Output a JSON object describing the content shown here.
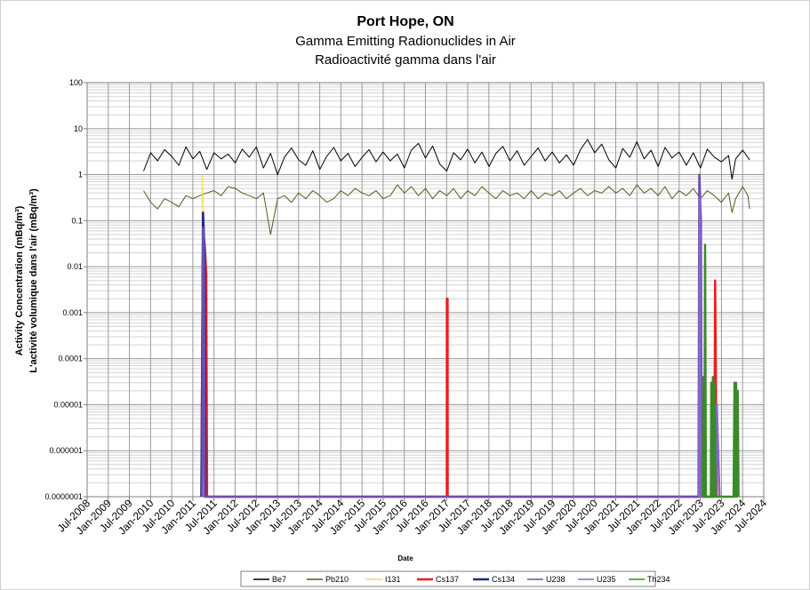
{
  "chart_data": {
    "type": "line",
    "title": "Port Hope, ON",
    "subtitle_lines": [
      "Gamma Emitting Radionuclides in Air",
      "Radioactivité gamma dans l'air"
    ],
    "ylabel_lines": [
      "Activity Concentration  (mBq/m³)",
      "L'activité volumique dans l'air (mBq/m³)"
    ],
    "xlabel": "Date",
    "y_scale": "log",
    "ylim": [
      1e-07,
      100
    ],
    "y_ticks": [
      100,
      10,
      1,
      0.1,
      0.01,
      0.001,
      0.0001,
      1e-05,
      1e-06,
      1e-07
    ],
    "y_tick_labels": [
      "100",
      "10",
      "1",
      "0.1",
      "0.01",
      "0.001",
      "0.0001",
      "0.00001",
      "0.000001",
      "0.0000001"
    ],
    "xlim": [
      "2008-07-01",
      "2024-07-01"
    ],
    "x_tick_labels": [
      "Jul-2008",
      "Jan-2009",
      "Jul-2009",
      "Jan-2010",
      "Jul-2010",
      "Jan-2011",
      "Jul-2011",
      "Jan-2012",
      "Jul-2012",
      "Jan-2013",
      "Jul-2013",
      "Jan-2014",
      "Jul-2014",
      "Jan-2015",
      "Jul-2015",
      "Jan-2016",
      "Jul-2016",
      "Jan-2017",
      "Jul-2017",
      "Jan-2018",
      "Jul-2018",
      "Jan-2019",
      "Jul-2019",
      "Jan-2020",
      "Jul-2020",
      "Jan-2021",
      "Jul-2021",
      "Jan-2022",
      "Jul-2022",
      "Jan-2023",
      "Jul-2023",
      "Jan-2024",
      "Jul-2024"
    ],
    "grid": true,
    "legend_position": "bottom",
    "series": [
      {
        "name": "Be7",
        "color": "#000000",
        "points": [
          [
            "2009-11-01",
            1.2
          ],
          [
            "2010-01-01",
            3.0
          ],
          [
            "2010-03-01",
            2.0
          ],
          [
            "2010-05-01",
            3.5
          ],
          [
            "2010-07-01",
            2.5
          ],
          [
            "2010-09-01",
            1.6
          ],
          [
            "2010-11-01",
            4.0
          ],
          [
            "2011-01-01",
            2.2
          ],
          [
            "2011-03-01",
            3.2
          ],
          [
            "2011-05-01",
            1.3
          ],
          [
            "2011-07-01",
            3.0
          ],
          [
            "2011-09-01",
            2.2
          ],
          [
            "2011-11-01",
            2.8
          ],
          [
            "2012-01-01",
            1.8
          ],
          [
            "2012-03-01",
            3.6
          ],
          [
            "2012-05-01",
            2.4
          ],
          [
            "2012-07-01",
            4.0
          ],
          [
            "2012-09-01",
            1.4
          ],
          [
            "2012-11-01",
            2.9
          ],
          [
            "2013-01-01",
            1.0
          ],
          [
            "2013-03-01",
            2.4
          ],
          [
            "2013-05-01",
            3.8
          ],
          [
            "2013-07-01",
            2.1
          ],
          [
            "2013-09-01",
            1.6
          ],
          [
            "2013-11-01",
            3.3
          ],
          [
            "2014-01-01",
            1.3
          ],
          [
            "2014-03-01",
            2.5
          ],
          [
            "2014-05-01",
            3.9
          ],
          [
            "2014-07-01",
            2.0
          ],
          [
            "2014-09-01",
            2.9
          ],
          [
            "2014-11-01",
            1.5
          ],
          [
            "2015-01-01",
            2.4
          ],
          [
            "2015-03-01",
            3.5
          ],
          [
            "2015-05-01",
            1.9
          ],
          [
            "2015-07-01",
            3.1
          ],
          [
            "2015-09-01",
            2.0
          ],
          [
            "2015-11-01",
            2.8
          ],
          [
            "2016-01-01",
            1.4
          ],
          [
            "2016-03-01",
            3.4
          ],
          [
            "2016-05-01",
            4.8
          ],
          [
            "2016-07-01",
            2.3
          ],
          [
            "2016-09-01",
            4.2
          ],
          [
            "2016-11-01",
            1.7
          ],
          [
            "2017-01-01",
            1.2
          ],
          [
            "2017-03-01",
            3.0
          ],
          [
            "2017-05-01",
            2.1
          ],
          [
            "2017-07-01",
            3.6
          ],
          [
            "2017-09-01",
            1.8
          ],
          [
            "2017-11-01",
            3.1
          ],
          [
            "2018-01-01",
            1.5
          ],
          [
            "2018-03-01",
            2.9
          ],
          [
            "2018-05-01",
            4.1
          ],
          [
            "2018-07-01",
            2.0
          ],
          [
            "2018-09-01",
            3.3
          ],
          [
            "2018-11-01",
            1.6
          ],
          [
            "2019-01-01",
            2.5
          ],
          [
            "2019-03-01",
            3.8
          ],
          [
            "2019-05-01",
            2.0
          ],
          [
            "2019-07-01",
            3.1
          ],
          [
            "2019-09-01",
            1.8
          ],
          [
            "2019-11-01",
            2.7
          ],
          [
            "2020-01-01",
            1.6
          ],
          [
            "2020-03-01",
            3.5
          ],
          [
            "2020-05-01",
            5.8
          ],
          [
            "2020-07-01",
            3.0
          ],
          [
            "2020-09-01",
            4.6
          ],
          [
            "2020-11-01",
            2.1
          ],
          [
            "2021-01-01",
            1.4
          ],
          [
            "2021-03-01",
            3.7
          ],
          [
            "2021-05-01",
            2.4
          ],
          [
            "2021-07-01",
            5.2
          ],
          [
            "2021-09-01",
            2.2
          ],
          [
            "2021-11-01",
            3.4
          ],
          [
            "2022-01-01",
            1.5
          ],
          [
            "2022-03-01",
            3.9
          ],
          [
            "2022-05-01",
            2.3
          ],
          [
            "2022-07-01",
            3.1
          ],
          [
            "2022-09-01",
            1.6
          ],
          [
            "2022-11-01",
            3.0
          ],
          [
            "2023-01-01",
            1.4
          ],
          [
            "2023-03-01",
            3.6
          ],
          [
            "2023-05-01",
            2.4
          ],
          [
            "2023-07-01",
            1.9
          ],
          [
            "2023-09-01",
            2.6
          ],
          [
            "2023-10-01",
            0.8
          ],
          [
            "2023-11-01",
            2.2
          ],
          [
            "2024-01-01",
            3.4
          ],
          [
            "2024-03-01",
            2.1
          ]
        ]
      },
      {
        "name": "Pb210",
        "color": "#5a5a1e",
        "points": [
          [
            "2009-11-01",
            0.45
          ],
          [
            "2010-01-01",
            0.25
          ],
          [
            "2010-03-01",
            0.18
          ],
          [
            "2010-05-01",
            0.3
          ],
          [
            "2010-07-01",
            0.25
          ],
          [
            "2010-09-01",
            0.2
          ],
          [
            "2010-11-01",
            0.35
          ],
          [
            "2011-01-01",
            0.3
          ],
          [
            "2011-03-01",
            0.35
          ],
          [
            "2011-05-01",
            0.4
          ],
          [
            "2011-07-01",
            0.45
          ],
          [
            "2011-09-01",
            0.35
          ],
          [
            "2011-11-01",
            0.55
          ],
          [
            "2012-01-01",
            0.5
          ],
          [
            "2012-03-01",
            0.4
          ],
          [
            "2012-05-01",
            0.35
          ],
          [
            "2012-07-01",
            0.3
          ],
          [
            "2012-09-01",
            0.4
          ],
          [
            "2012-11-01",
            0.05
          ],
          [
            "2013-01-01",
            0.3
          ],
          [
            "2013-03-01",
            0.35
          ],
          [
            "2013-05-01",
            0.25
          ],
          [
            "2013-07-01",
            0.4
          ],
          [
            "2013-09-01",
            0.3
          ],
          [
            "2013-11-01",
            0.45
          ],
          [
            "2014-01-01",
            0.35
          ],
          [
            "2014-03-01",
            0.25
          ],
          [
            "2014-05-01",
            0.3
          ],
          [
            "2014-07-01",
            0.45
          ],
          [
            "2014-09-01",
            0.35
          ],
          [
            "2014-11-01",
            0.5
          ],
          [
            "2015-01-01",
            0.4
          ],
          [
            "2015-03-01",
            0.35
          ],
          [
            "2015-05-01",
            0.45
          ],
          [
            "2015-07-01",
            0.3
          ],
          [
            "2015-09-01",
            0.35
          ],
          [
            "2015-11-01",
            0.6
          ],
          [
            "2016-01-01",
            0.4
          ],
          [
            "2016-03-01",
            0.55
          ],
          [
            "2016-05-01",
            0.35
          ],
          [
            "2016-07-01",
            0.5
          ],
          [
            "2016-09-01",
            0.3
          ],
          [
            "2016-11-01",
            0.45
          ],
          [
            "2017-01-01",
            0.35
          ],
          [
            "2017-03-01",
            0.5
          ],
          [
            "2017-05-01",
            0.3
          ],
          [
            "2017-07-01",
            0.45
          ],
          [
            "2017-09-01",
            0.35
          ],
          [
            "2017-11-01",
            0.55
          ],
          [
            "2018-01-01",
            0.4
          ],
          [
            "2018-03-01",
            0.3
          ],
          [
            "2018-05-01",
            0.45
          ],
          [
            "2018-07-01",
            0.35
          ],
          [
            "2018-09-01",
            0.4
          ],
          [
            "2018-11-01",
            0.3
          ],
          [
            "2019-01-01",
            0.45
          ],
          [
            "2019-03-01",
            0.3
          ],
          [
            "2019-05-01",
            0.4
          ],
          [
            "2019-07-01",
            0.35
          ],
          [
            "2019-09-01",
            0.45
          ],
          [
            "2019-11-01",
            0.3
          ],
          [
            "2020-01-01",
            0.4
          ],
          [
            "2020-03-01",
            0.5
          ],
          [
            "2020-05-01",
            0.35
          ],
          [
            "2020-07-01",
            0.45
          ],
          [
            "2020-09-01",
            0.4
          ],
          [
            "2020-11-01",
            0.55
          ],
          [
            "2021-01-01",
            0.4
          ],
          [
            "2021-03-01",
            0.5
          ],
          [
            "2021-05-01",
            0.35
          ],
          [
            "2021-07-01",
            0.6
          ],
          [
            "2021-09-01",
            0.4
          ],
          [
            "2021-11-01",
            0.5
          ],
          [
            "2022-01-01",
            0.35
          ],
          [
            "2022-03-01",
            0.55
          ],
          [
            "2022-05-01",
            0.3
          ],
          [
            "2022-07-01",
            0.45
          ],
          [
            "2022-09-01",
            0.35
          ],
          [
            "2022-11-01",
            0.5
          ],
          [
            "2023-01-01",
            0.3
          ],
          [
            "2023-03-01",
            0.45
          ],
          [
            "2023-05-01",
            0.35
          ],
          [
            "2023-07-01",
            0.25
          ],
          [
            "2023-09-01",
            0.4
          ],
          [
            "2023-10-01",
            0.15
          ],
          [
            "2023-11-01",
            0.3
          ],
          [
            "2024-01-01",
            0.55
          ],
          [
            "2024-02-15",
            0.35
          ],
          [
            "2024-03-01",
            0.18
          ]
        ]
      },
      {
        "name": "I131",
        "color": "#f2dc5d",
        "points": [
          [
            "2011-03-15",
            1e-07
          ],
          [
            "2011-03-22",
            1.0
          ],
          [
            "2011-03-29",
            0.3
          ],
          [
            "2011-04-05",
            0.15
          ],
          [
            "2011-04-12",
            0.02
          ],
          [
            "2011-04-19",
            1e-07
          ]
        ]
      },
      {
        "name": "Cs137",
        "color": "#e8201c",
        "points": [
          [
            "2011-03-15",
            1e-07
          ],
          [
            "2011-03-29",
            0.06
          ],
          [
            "2011-04-12",
            0.03
          ],
          [
            "2011-04-26",
            0.007
          ],
          [
            "2011-05-03",
            1e-07
          ],
          [
            "2017-01-01",
            1e-07
          ],
          [
            "2017-01-02",
            0.002
          ],
          [
            "2017-01-08",
            0.002
          ],
          [
            "2017-01-09",
            1e-07
          ],
          [
            "2023-05-01",
            1e-07
          ],
          [
            "2023-05-08",
            0.005
          ],
          [
            "2023-05-15",
            3e-05
          ],
          [
            "2023-05-22",
            1e-07
          ]
        ]
      },
      {
        "name": "Cs134",
        "color": "#1f2a8c",
        "points": [
          [
            "2011-03-15",
            1e-07
          ],
          [
            "2011-03-29",
            0.15
          ],
          [
            "2011-04-05",
            0.05
          ],
          [
            "2011-04-12",
            0.02
          ],
          [
            "2011-04-19",
            1e-07
          ]
        ]
      },
      {
        "name": "U238",
        "color": "#6a4fb0",
        "points": [
          [
            "2011-03-22",
            1e-07
          ],
          [
            "2011-03-29",
            0.07
          ],
          [
            "2011-04-05",
            0.04
          ],
          [
            "2011-04-12",
            1e-07
          ],
          [
            "2022-12-15",
            1e-07
          ],
          [
            "2022-12-22",
            1.0
          ],
          [
            "2023-01-05",
            0.1
          ],
          [
            "2023-01-12",
            1e-07
          ]
        ]
      },
      {
        "name": "U235",
        "color": "#8866cc",
        "points": [
          [
            "2022-12-20",
            1e-07
          ],
          [
            "2022-12-27",
            0.3
          ],
          [
            "2023-01-03",
            1e-07
          ],
          [
            "2023-05-15",
            1e-07
          ],
          [
            "2023-05-22",
            1e-05
          ],
          [
            "2023-06-15",
            1e-07
          ]
        ]
      },
      {
        "name": "Th234",
        "color": "#3a8a2a",
        "points": [
          [
            "2023-01-20",
            1e-07
          ],
          [
            "2023-01-27",
            4e-05
          ],
          [
            "2023-02-03",
            1e-07
          ],
          [
            "2023-02-10",
            0.03
          ],
          [
            "2023-02-17",
            1e-07
          ],
          [
            "2023-04-01",
            1e-07
          ],
          [
            "2023-04-05",
            3e-05
          ],
          [
            "2023-04-12",
            1e-07
          ],
          [
            "2023-04-19",
            4e-05
          ],
          [
            "2023-04-26",
            1e-07
          ],
          [
            "2023-05-03",
            3e-05
          ],
          [
            "2023-05-10",
            1e-07
          ],
          [
            "2023-10-15",
            1e-07
          ],
          [
            "2023-10-22",
            3e-05
          ],
          [
            "2023-10-29",
            1e-07
          ],
          [
            "2023-11-05",
            3e-05
          ],
          [
            "2023-11-12",
            1e-07
          ],
          [
            "2023-11-19",
            2e-05
          ],
          [
            "2023-11-26",
            1e-07
          ]
        ]
      }
    ]
  }
}
